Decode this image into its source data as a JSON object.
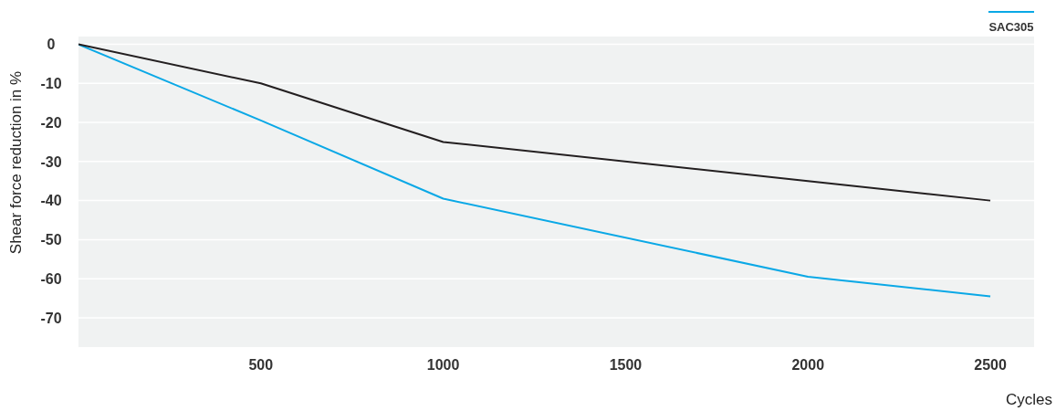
{
  "chart_data": {
    "type": "line",
    "xlabel": "Cycles",
    "ylabel": "Shear force reduction in %",
    "x": [
      0,
      500,
      1000,
      2000,
      2500
    ],
    "series": [
      {
        "name": "SAC305",
        "color": "#0aa8e6",
        "values": [
          0,
          -19.5,
          -39.5,
          -59.5,
          -64.5
        ]
      },
      {
        "color": "#231f20",
        "values": [
          0,
          -10,
          -25,
          -35,
          -40
        ]
      }
    ],
    "xlim": [
      0,
      2620
    ],
    "xticks": [
      500,
      1000,
      1500,
      2000,
      2500
    ],
    "ylim": [
      -77.5,
      2
    ],
    "yticks": [
      0,
      -10,
      -20,
      -30,
      -40,
      -50,
      -60,
      -70
    ],
    "grid": "y",
    "legend": "top right",
    "marker": "none",
    "line_style": "solid"
  }
}
